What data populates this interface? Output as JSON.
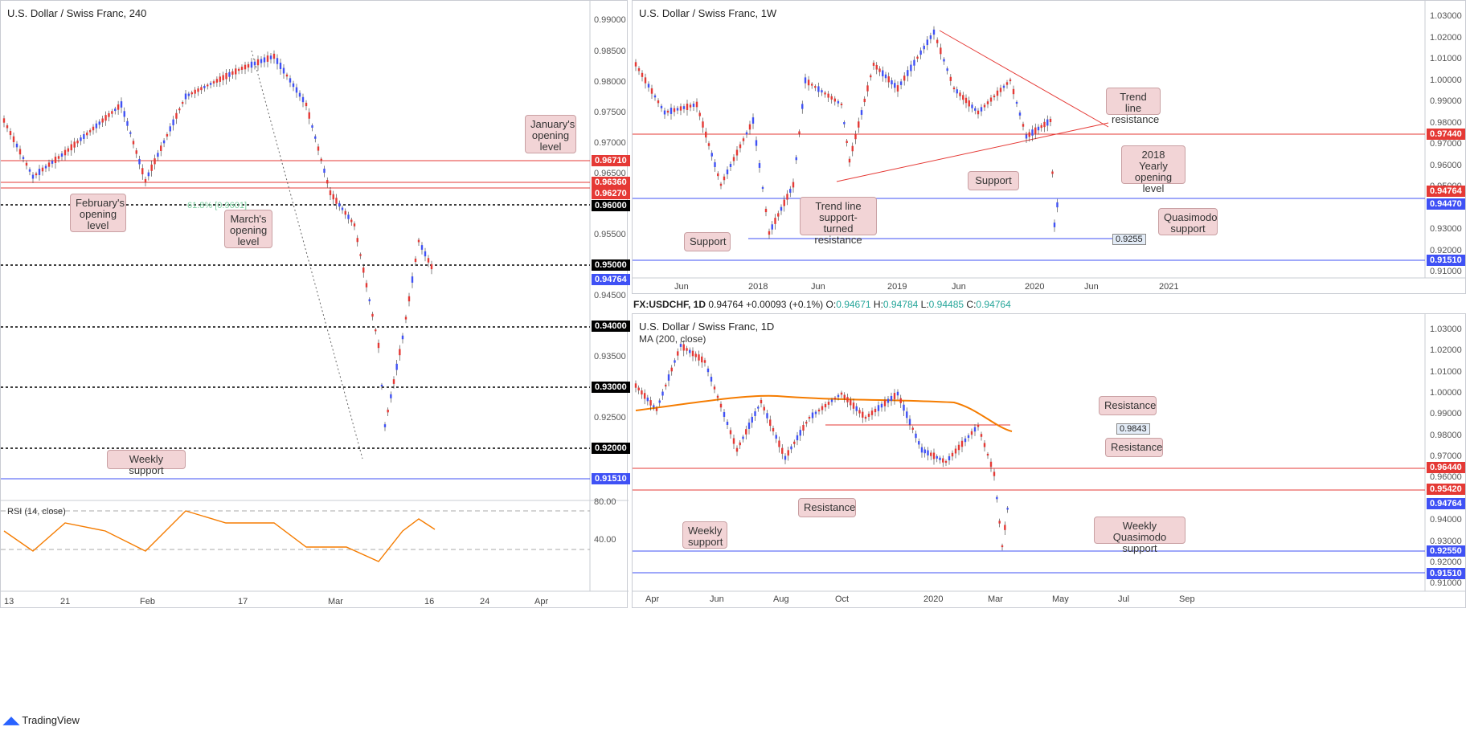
{
  "branding": "TradingView",
  "panel_4h": {
    "title": "U.S. Dollar / Swiss Franc, 240",
    "price_ticks": [
      "0.99000",
      "0.98500",
      "0.98000",
      "0.97500",
      "0.97000",
      "0.96500",
      "0.95500",
      "0.94500",
      "0.93500",
      "0.92500"
    ],
    "levels": [
      {
        "value": "0.96710",
        "color": "#e53935"
      },
      {
        "value": "0.96360",
        "color": "#e53935"
      },
      {
        "value": "0.96270",
        "color": "#e53935"
      },
      {
        "value": "0.96000",
        "color": "#000000"
      },
      {
        "value": "0.95000",
        "color": "#000000"
      },
      {
        "value": "0.94764",
        "color": "#3f51f5"
      },
      {
        "value": "0.94000",
        "color": "#000000"
      },
      {
        "value": "0.93000",
        "color": "#000000"
      },
      {
        "value": "0.92000",
        "color": "#000000"
      },
      {
        "value": "0.91510",
        "color": "#3f51f5"
      }
    ],
    "fib_label": "61.8% [0.9601]",
    "callouts": [
      "January's opening level",
      "February's opening level",
      "March's opening level",
      "Weekly support"
    ],
    "rsi_label": "RSI (14, close)",
    "rsi_ticks": [
      "80.00",
      "40.00"
    ],
    "x_ticks": [
      "13",
      "21",
      "Feb",
      "17",
      "Mar",
      "16",
      "24",
      "Apr"
    ]
  },
  "panel_1w": {
    "title": "U.S. Dollar / Swiss Franc, 1W",
    "price_ticks": [
      "1.03000",
      "1.02000",
      "1.01000",
      "1.00000",
      "0.99000",
      "0.98000",
      "0.97000",
      "0.96000",
      "0.95000",
      "0.93000",
      "0.92000",
      "0.91000"
    ],
    "levels": [
      {
        "value": "0.97440",
        "color": "#e53935"
      },
      {
        "value": "0.94764",
        "color": "#e53935"
      },
      {
        "value": "0.94470",
        "color": "#3f51f5"
      },
      {
        "value": "0.91510",
        "color": "#3f51f5"
      }
    ],
    "marker_value": "0.9255",
    "callouts": [
      "Trend line resistance",
      "2018 Yearly opening level",
      "Support",
      "Trend line support-turned resistance",
      "Quasimodo support",
      "Support"
    ],
    "x_ticks": [
      "Jun",
      "2018",
      "Jun",
      "2019",
      "Jun",
      "2020",
      "Jun",
      "2021"
    ]
  },
  "status_bar": {
    "symbol": "FX:USDCHF, 1D",
    "last": "0.94764",
    "change": "+0.00093 (+0.1%)",
    "open_label": "O:",
    "open": "0.94671",
    "high_label": "H:",
    "high": "0.94784",
    "low_label": "L:",
    "low": "0.94485",
    "close_label": "C:",
    "close": "0.94764"
  },
  "panel_1d": {
    "title": "U.S. Dollar / Swiss Franc, 1D",
    "ma_label": "MA (200, close)",
    "price_ticks": [
      "1.03000",
      "1.02000",
      "1.01000",
      "1.00000",
      "0.99000",
      "0.98000",
      "0.97000",
      "0.96000",
      "0.94000",
      "0.93000",
      "0.92000",
      "0.91000"
    ],
    "levels": [
      {
        "value": "0.96440",
        "color": "#e53935"
      },
      {
        "value": "0.95420",
        "color": "#e53935"
      },
      {
        "value": "0.94764",
        "color": "#3f51f5"
      },
      {
        "value": "0.92550",
        "color": "#3f51f5"
      },
      {
        "value": "0.91510",
        "color": "#3f51f5"
      }
    ],
    "marker_value": "0.9843",
    "callouts": [
      "Resistance",
      "Resistance",
      "Resistance",
      "Weekly support",
      "Weekly Quasimodo support"
    ],
    "x_ticks": [
      "Apr",
      "Jun",
      "Aug",
      "Oct",
      "2020",
      "Mar",
      "May",
      "Jul",
      "Sep"
    ]
  },
  "colors": {
    "bull": "#3f51f5",
    "bear": "#e53935",
    "ma": "#f57c00",
    "rsi": "#f57c00"
  }
}
